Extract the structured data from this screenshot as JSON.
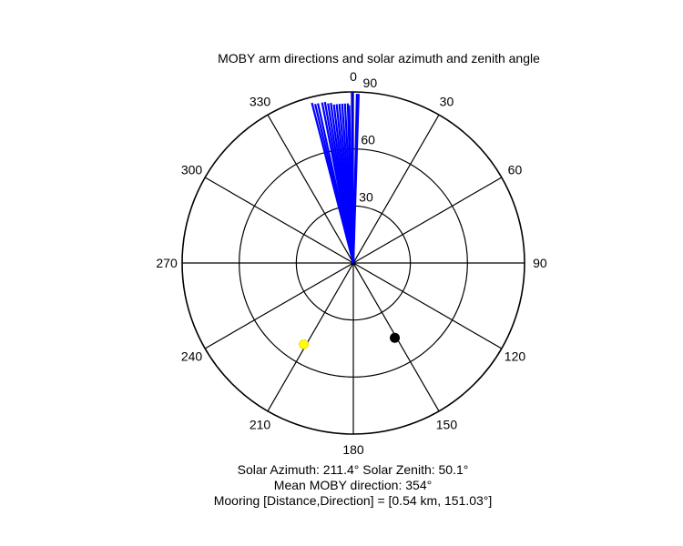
{
  "chart_data": {
    "type": "polar",
    "title": "MOBY arm directions and solar azimuth and zenith angle",
    "angle_ticks": [
      "0",
      "30",
      "60",
      "90",
      "120",
      "150",
      "180",
      "210",
      "240",
      "270",
      "300",
      "330"
    ],
    "radial_ticks": [
      "30",
      "60",
      "90"
    ],
    "rmax": 90,
    "arm_directions": [
      {
        "az": 345.5,
        "zenith": 87
      },
      {
        "az": 346.5,
        "zenith": 86
      },
      {
        "az": 347.5,
        "zenith": 86
      },
      {
        "az": 349,
        "zenith": 86
      },
      {
        "az": 350,
        "zenith": 86
      },
      {
        "az": 351,
        "zenith": 85
      },
      {
        "az": 352,
        "zenith": 85
      },
      {
        "az": 353,
        "zenith": 84
      },
      {
        "az": 354,
        "zenith": 84
      },
      {
        "az": 355,
        "zenith": 84
      },
      {
        "az": 356,
        "zenith": 84
      },
      {
        "az": 357,
        "zenith": 84
      },
      {
        "az": 358,
        "zenith": 84
      },
      {
        "az": 358.5,
        "zenith": 83
      },
      {
        "az": 359.5,
        "zenith": 90
      },
      {
        "az": 1.2,
        "zenith": 89
      },
      {
        "az": 1.8,
        "zenith": 89
      }
    ],
    "arm_color": "#0000ff",
    "sun": {
      "az": 211.4,
      "zenith": 50.1,
      "color": "#ffff00"
    },
    "mooring": {
      "az": 151.03,
      "r": 45,
      "color": "#000000"
    }
  },
  "captions": {
    "line1": "Solar Azimuth: 211.4°   Solar Zenith: 50.1°",
    "line2": "Mean MOBY direction: 354°",
    "line3": "Mooring [Distance,Direction] = [0.54 km, 151.03°]"
  }
}
